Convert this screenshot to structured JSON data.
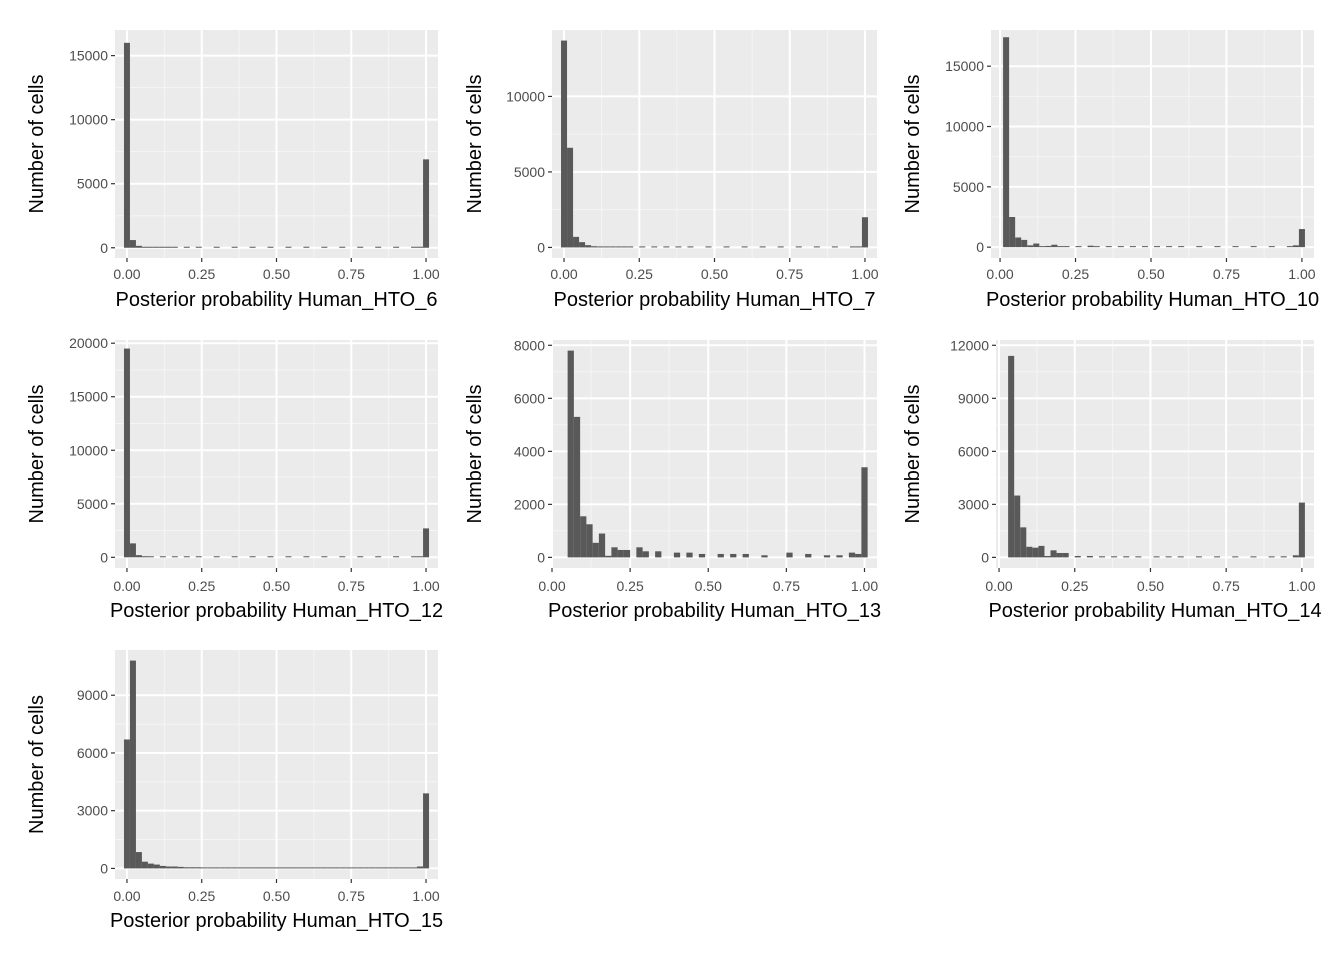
{
  "chart_data": [
    {
      "type": "bar",
      "xlabel": "Posterior probability Human_HTO_6",
      "ylabel": "Number of cells",
      "xlim": [
        -0.04,
        1.04
      ],
      "ylim": [
        -800,
        17000
      ],
      "xticks": [
        "0.00",
        "0.25",
        "0.50",
        "0.75",
        "1.00"
      ],
      "yticks": [
        0,
        5000,
        10000,
        15000
      ],
      "ytick_labels": [
        "0",
        "5000",
        "10000",
        "15000"
      ],
      "bars": [
        {
          "x": 0.0,
          "y": 16000
        },
        {
          "x": 0.02,
          "y": 600
        },
        {
          "x": 0.04,
          "y": 150
        },
        {
          "x": 0.06,
          "y": 60
        },
        {
          "x": 0.08,
          "y": 40
        },
        {
          "x": 0.1,
          "y": 30
        },
        {
          "x": 0.12,
          "y": 25
        },
        {
          "x": 0.14,
          "y": 20
        },
        {
          "x": 0.16,
          "y": 20
        },
        {
          "x": 0.2,
          "y": 15
        },
        {
          "x": 0.24,
          "y": 10
        },
        {
          "x": 0.3,
          "y": 10
        },
        {
          "x": 0.36,
          "y": 10
        },
        {
          "x": 0.42,
          "y": 10
        },
        {
          "x": 0.48,
          "y": 10
        },
        {
          "x": 0.54,
          "y": 10
        },
        {
          "x": 0.6,
          "y": 10
        },
        {
          "x": 0.66,
          "y": 10
        },
        {
          "x": 0.72,
          "y": 10
        },
        {
          "x": 0.78,
          "y": 10
        },
        {
          "x": 0.84,
          "y": 10
        },
        {
          "x": 0.9,
          "y": 10
        },
        {
          "x": 0.96,
          "y": 40
        },
        {
          "x": 0.98,
          "y": 80
        },
        {
          "x": 1.0,
          "y": 6900
        }
      ]
    },
    {
      "type": "bar",
      "xlabel": "Posterior probability Human_HTO_7",
      "ylabel": "Number of cells",
      "xlim": [
        -0.04,
        1.04
      ],
      "ylim": [
        -700,
        14400
      ],
      "xticks": [
        "0.00",
        "0.25",
        "0.50",
        "0.75",
        "1.00"
      ],
      "yticks": [
        0,
        5000,
        10000
      ],
      "ytick_labels": [
        "0",
        "5000",
        "10000"
      ],
      "bars": [
        {
          "x": 0.0,
          "y": 13700
        },
        {
          "x": 0.02,
          "y": 6600
        },
        {
          "x": 0.04,
          "y": 700
        },
        {
          "x": 0.06,
          "y": 350
        },
        {
          "x": 0.08,
          "y": 150
        },
        {
          "x": 0.1,
          "y": 80
        },
        {
          "x": 0.12,
          "y": 50
        },
        {
          "x": 0.14,
          "y": 40
        },
        {
          "x": 0.16,
          "y": 30
        },
        {
          "x": 0.18,
          "y": 30
        },
        {
          "x": 0.2,
          "y": 25
        },
        {
          "x": 0.22,
          "y": 20
        },
        {
          "x": 0.26,
          "y": 20
        },
        {
          "x": 0.3,
          "y": 20
        },
        {
          "x": 0.34,
          "y": 20
        },
        {
          "x": 0.38,
          "y": 20
        },
        {
          "x": 0.42,
          "y": 20
        },
        {
          "x": 0.48,
          "y": 20
        },
        {
          "x": 0.54,
          "y": 20
        },
        {
          "x": 0.6,
          "y": 20
        },
        {
          "x": 0.66,
          "y": 20
        },
        {
          "x": 0.72,
          "y": 20
        },
        {
          "x": 0.78,
          "y": 20
        },
        {
          "x": 0.84,
          "y": 20
        },
        {
          "x": 0.9,
          "y": 20
        },
        {
          "x": 0.96,
          "y": 40
        },
        {
          "x": 0.98,
          "y": 60
        },
        {
          "x": 1.0,
          "y": 2000
        }
      ]
    },
    {
      "type": "bar",
      "xlabel": "Posterior probability Human_HTO_10",
      "ylabel": "Number of cells",
      "xlim": [
        -0.03,
        1.04
      ],
      "ylim": [
        -900,
        18000
      ],
      "xticks": [
        "0.00",
        "0.25",
        "0.50",
        "0.75",
        "1.00"
      ],
      "yticks": [
        0,
        5000,
        10000,
        15000
      ],
      "ytick_labels": [
        "0",
        "5000",
        "10000",
        "15000"
      ],
      "bars": [
        {
          "x": 0.02,
          "y": 17400
        },
        {
          "x": 0.04,
          "y": 2500
        },
        {
          "x": 0.06,
          "y": 800
        },
        {
          "x": 0.08,
          "y": 600
        },
        {
          "x": 0.1,
          "y": 150
        },
        {
          "x": 0.12,
          "y": 300
        },
        {
          "x": 0.14,
          "y": 50
        },
        {
          "x": 0.16,
          "y": 100
        },
        {
          "x": 0.18,
          "y": 200
        },
        {
          "x": 0.2,
          "y": 60
        },
        {
          "x": 0.22,
          "y": 50
        },
        {
          "x": 0.26,
          "y": 40
        },
        {
          "x": 0.3,
          "y": 120
        },
        {
          "x": 0.32,
          "y": 60
        },
        {
          "x": 0.36,
          "y": 30
        },
        {
          "x": 0.4,
          "y": 30
        },
        {
          "x": 0.44,
          "y": 30
        },
        {
          "x": 0.48,
          "y": 30
        },
        {
          "x": 0.52,
          "y": 30
        },
        {
          "x": 0.56,
          "y": 30
        },
        {
          "x": 0.6,
          "y": 30
        },
        {
          "x": 0.66,
          "y": 30
        },
        {
          "x": 0.72,
          "y": 30
        },
        {
          "x": 0.78,
          "y": 30
        },
        {
          "x": 0.84,
          "y": 30
        },
        {
          "x": 0.9,
          "y": 30
        },
        {
          "x": 0.96,
          "y": 60
        },
        {
          "x": 0.98,
          "y": 150
        },
        {
          "x": 1.0,
          "y": 1500
        }
      ]
    },
    {
      "type": "bar",
      "xlabel": "Posterior probability Human_HTO_12",
      "ylabel": "Number of cells",
      "xlim": [
        -0.04,
        1.04
      ],
      "ylim": [
        -1000,
        20300
      ],
      "xticks": [
        "0.00",
        "0.25",
        "0.50",
        "0.75",
        "1.00"
      ],
      "yticks": [
        0,
        5000,
        10000,
        15000,
        20000
      ],
      "ytick_labels": [
        "0",
        "5000",
        "10000",
        "15000",
        "20000"
      ],
      "bars": [
        {
          "x": 0.0,
          "y": 19500
        },
        {
          "x": 0.02,
          "y": 1300
        },
        {
          "x": 0.04,
          "y": 200
        },
        {
          "x": 0.06,
          "y": 100
        },
        {
          "x": 0.08,
          "y": 60
        },
        {
          "x": 0.12,
          "y": 40
        },
        {
          "x": 0.16,
          "y": 30
        },
        {
          "x": 0.2,
          "y": 30
        },
        {
          "x": 0.24,
          "y": 20
        },
        {
          "x": 0.3,
          "y": 20
        },
        {
          "x": 0.36,
          "y": 20
        },
        {
          "x": 0.42,
          "y": 20
        },
        {
          "x": 0.48,
          "y": 20
        },
        {
          "x": 0.54,
          "y": 20
        },
        {
          "x": 0.6,
          "y": 20
        },
        {
          "x": 0.66,
          "y": 20
        },
        {
          "x": 0.72,
          "y": 20
        },
        {
          "x": 0.78,
          "y": 20
        },
        {
          "x": 0.84,
          "y": 20
        },
        {
          "x": 0.9,
          "y": 20
        },
        {
          "x": 0.96,
          "y": 40
        },
        {
          "x": 0.98,
          "y": 80
        },
        {
          "x": 1.0,
          "y": 2700
        }
      ]
    },
    {
      "type": "bar",
      "xlabel": "Posterior probability Human_HTO_13",
      "ylabel": "Number of cells",
      "xlim": [
        0.0,
        1.04
      ],
      "ylim": [
        -400,
        8200
      ],
      "xticks": [
        "0.00",
        "0.25",
        "0.50",
        "0.75",
        "1.00"
      ],
      "yticks": [
        0,
        2000,
        4000,
        6000,
        8000
      ],
      "ytick_labels": [
        "0",
        "2000",
        "4000",
        "6000",
        "8000"
      ],
      "bars": [
        {
          "x": 0.06,
          "y": 7800
        },
        {
          "x": 0.08,
          "y": 5300
        },
        {
          "x": 0.1,
          "y": 1550
        },
        {
          "x": 0.12,
          "y": 1250
        },
        {
          "x": 0.14,
          "y": 550
        },
        {
          "x": 0.16,
          "y": 900
        },
        {
          "x": 0.18,
          "y": 60
        },
        {
          "x": 0.2,
          "y": 380
        },
        {
          "x": 0.22,
          "y": 280
        },
        {
          "x": 0.24,
          "y": 280
        },
        {
          "x": 0.28,
          "y": 380
        },
        {
          "x": 0.3,
          "y": 230
        },
        {
          "x": 0.34,
          "y": 230
        },
        {
          "x": 0.4,
          "y": 180
        },
        {
          "x": 0.44,
          "y": 180
        },
        {
          "x": 0.48,
          "y": 130
        },
        {
          "x": 0.54,
          "y": 130
        },
        {
          "x": 0.58,
          "y": 130
        },
        {
          "x": 0.62,
          "y": 130
        },
        {
          "x": 0.68,
          "y": 80
        },
        {
          "x": 0.76,
          "y": 180
        },
        {
          "x": 0.82,
          "y": 130
        },
        {
          "x": 0.88,
          "y": 80
        },
        {
          "x": 0.92,
          "y": 80
        },
        {
          "x": 0.96,
          "y": 180
        },
        {
          "x": 0.98,
          "y": 130
        },
        {
          "x": 1.0,
          "y": 3400
        }
      ]
    },
    {
      "type": "bar",
      "xlabel": "Posterior probability Human_HTO_14",
      "ylabel": "Number of cells",
      "xlim": [
        -0.01,
        1.04
      ],
      "ylim": [
        -600,
        12300
      ],
      "xticks": [
        "0.00",
        "0.25",
        "0.50",
        "0.75",
        "1.00"
      ],
      "yticks": [
        0,
        3000,
        6000,
        9000,
        12000
      ],
      "ytick_labels": [
        "0",
        "3000",
        "6000",
        "9000",
        "12000"
      ],
      "bars": [
        {
          "x": 0.04,
          "y": 11400
        },
        {
          "x": 0.06,
          "y": 3500
        },
        {
          "x": 0.08,
          "y": 1700
        },
        {
          "x": 0.1,
          "y": 600
        },
        {
          "x": 0.12,
          "y": 550
        },
        {
          "x": 0.14,
          "y": 650
        },
        {
          "x": 0.16,
          "y": 80
        },
        {
          "x": 0.18,
          "y": 400
        },
        {
          "x": 0.2,
          "y": 250
        },
        {
          "x": 0.22,
          "y": 250
        },
        {
          "x": 0.26,
          "y": 80
        },
        {
          "x": 0.3,
          "y": 80
        },
        {
          "x": 0.34,
          "y": 60
        },
        {
          "x": 0.38,
          "y": 60
        },
        {
          "x": 0.42,
          "y": 60
        },
        {
          "x": 0.46,
          "y": 40
        },
        {
          "x": 0.52,
          "y": 40
        },
        {
          "x": 0.56,
          "y": 40
        },
        {
          "x": 0.6,
          "y": 40
        },
        {
          "x": 0.66,
          "y": 40
        },
        {
          "x": 0.72,
          "y": 40
        },
        {
          "x": 0.78,
          "y": 40
        },
        {
          "x": 0.84,
          "y": 40
        },
        {
          "x": 0.9,
          "y": 40
        },
        {
          "x": 0.94,
          "y": 60
        },
        {
          "x": 0.98,
          "y": 120
        },
        {
          "x": 1.0,
          "y": 3100
        }
      ]
    },
    {
      "type": "bar",
      "xlabel": "Posterior probability Human_HTO_15",
      "ylabel": "Number of cells",
      "xlim": [
        -0.04,
        1.04
      ],
      "ylim": [
        -550,
        11350
      ],
      "xticks": [
        "0.00",
        "0.25",
        "0.50",
        "0.75",
        "1.00"
      ],
      "yticks": [
        0,
        3000,
        6000,
        9000
      ],
      "ytick_labels": [
        "0",
        "3000",
        "6000",
        "9000"
      ],
      "bars": [
        {
          "x": 0.0,
          "y": 6700
        },
        {
          "x": 0.02,
          "y": 10800
        },
        {
          "x": 0.04,
          "y": 850
        },
        {
          "x": 0.06,
          "y": 350
        },
        {
          "x": 0.08,
          "y": 250
        },
        {
          "x": 0.1,
          "y": 200
        },
        {
          "x": 0.12,
          "y": 130
        },
        {
          "x": 0.14,
          "y": 100
        },
        {
          "x": 0.16,
          "y": 100
        },
        {
          "x": 0.18,
          "y": 80
        },
        {
          "x": 0.2,
          "y": 60
        },
        {
          "x": 0.22,
          "y": 60
        },
        {
          "x": 0.24,
          "y": 60
        },
        {
          "x": 0.26,
          "y": 50
        },
        {
          "x": 0.28,
          "y": 50
        },
        {
          "x": 0.3,
          "y": 40
        },
        {
          "x": 0.32,
          "y": 40
        },
        {
          "x": 0.34,
          "y": 40
        },
        {
          "x": 0.36,
          "y": 40
        },
        {
          "x": 0.38,
          "y": 30
        },
        {
          "x": 0.4,
          "y": 30
        },
        {
          "x": 0.42,
          "y": 30
        },
        {
          "x": 0.44,
          "y": 30
        },
        {
          "x": 0.46,
          "y": 30
        },
        {
          "x": 0.48,
          "y": 30
        },
        {
          "x": 0.5,
          "y": 30
        },
        {
          "x": 0.52,
          "y": 30
        },
        {
          "x": 0.54,
          "y": 30
        },
        {
          "x": 0.56,
          "y": 30
        },
        {
          "x": 0.58,
          "y": 30
        },
        {
          "x": 0.6,
          "y": 30
        },
        {
          "x": 0.62,
          "y": 30
        },
        {
          "x": 0.64,
          "y": 30
        },
        {
          "x": 0.66,
          "y": 30
        },
        {
          "x": 0.68,
          "y": 30
        },
        {
          "x": 0.7,
          "y": 30
        },
        {
          "x": 0.72,
          "y": 30
        },
        {
          "x": 0.74,
          "y": 30
        },
        {
          "x": 0.76,
          "y": 30
        },
        {
          "x": 0.78,
          "y": 30
        },
        {
          "x": 0.8,
          "y": 30
        },
        {
          "x": 0.82,
          "y": 30
        },
        {
          "x": 0.84,
          "y": 30
        },
        {
          "x": 0.86,
          "y": 30
        },
        {
          "x": 0.88,
          "y": 30
        },
        {
          "x": 0.9,
          "y": 30
        },
        {
          "x": 0.92,
          "y": 30
        },
        {
          "x": 0.94,
          "y": 30
        },
        {
          "x": 0.96,
          "y": 50
        },
        {
          "x": 0.98,
          "y": 100
        },
        {
          "x": 1.0,
          "y": 3900
        }
      ]
    }
  ],
  "colors": {
    "panel_background": "#ebebeb",
    "grid_major": "#ffffff",
    "grid_minor": "#f5f5f5",
    "bar_fill": "#595959",
    "tick_mark": "#333333"
  },
  "bin_width": 0.02
}
